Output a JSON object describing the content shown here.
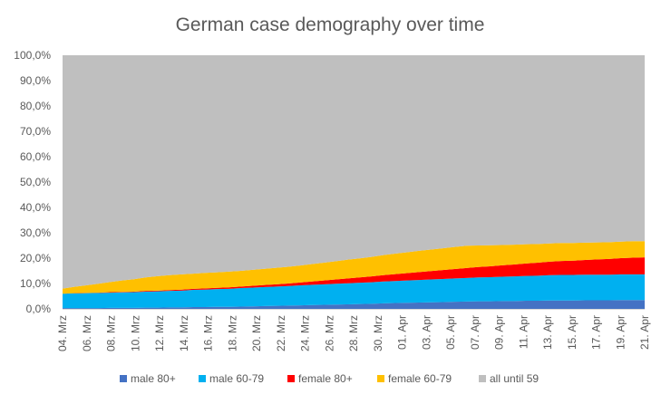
{
  "chart_data": {
    "type": "area",
    "stacked": true,
    "percent": true,
    "title": "German case demography over time",
    "xlabel": "",
    "ylabel": "",
    "ylim": [
      0,
      100
    ],
    "yticks": [
      "0,0%",
      "10,0%",
      "20,0%",
      "30,0%",
      "40,0%",
      "50,0%",
      "60,0%",
      "70,0%",
      "80,0%",
      "90,0%",
      "100,0%"
    ],
    "grid": false,
    "legend_position": "bottom",
    "categories": [
      "04. Mrz",
      "05. Mrz",
      "06. Mrz",
      "07. Mrz",
      "08. Mrz",
      "09. Mrz",
      "10. Mrz",
      "11. Mrz",
      "12. Mrz",
      "13. Mrz",
      "14. Mrz",
      "15. Mrz",
      "16. Mrz",
      "17. Mrz",
      "18. Mrz",
      "19. Mrz",
      "20. Mrz",
      "21. Mrz",
      "22. Mrz",
      "23. Mrz",
      "24. Mrz",
      "25. Mrz",
      "26. Mrz",
      "27. Mrz",
      "28. Mrz",
      "29. Mrz",
      "30. Mrz",
      "31. Mrz",
      "01. Apr",
      "02. Apr",
      "03. Apr",
      "04. Apr",
      "05. Apr",
      "06. Apr",
      "07. Apr",
      "08. Apr",
      "09. Apr",
      "10. Apr",
      "11. Apr",
      "12. Apr",
      "13. Apr",
      "14. Apr",
      "15. Apr",
      "16. Apr",
      "17. Apr",
      "18. Apr",
      "19. Apr",
      "20. Apr",
      "21. Apr",
      "22. Apr"
    ],
    "tick_labels": [
      "04. Mrz",
      "06. Mrz",
      "08. Mrz",
      "10. Mrz",
      "12. Mrz",
      "14. Mrz",
      "16. Mrz",
      "18. Mrz",
      "20. Mrz",
      "22. Mrz",
      "24. Mrz",
      "26. Mrz",
      "28. Mrz",
      "30. Mrz",
      "01. Apr",
      "03. Apr",
      "05. Apr",
      "07. Apr",
      "09. Apr",
      "11. Apr",
      "13. Apr",
      "15. Apr",
      "17. Apr",
      "19. Apr",
      "21. Apr"
    ],
    "series": [
      {
        "name": "male 80+",
        "color": "#4472c4",
        "values": [
          0.3,
          0.3,
          0.3,
          0.3,
          0.4,
          0.4,
          0.4,
          0.5,
          0.5,
          0.6,
          0.6,
          0.7,
          0.7,
          0.8,
          0.8,
          0.9,
          1.0,
          1.1,
          1.2,
          1.3,
          1.4,
          1.5,
          1.6,
          1.7,
          1.8,
          1.9,
          2.0,
          2.2,
          2.3,
          2.4,
          2.5,
          2.6,
          2.7,
          2.8,
          2.9,
          3.0,
          3.0,
          3.1,
          3.1,
          3.2,
          3.2,
          3.3,
          3.3,
          3.3,
          3.4,
          3.4,
          3.4,
          3.5,
          3.5,
          3.5
        ]
      },
      {
        "name": "male 60-79",
        "color": "#00b0f0",
        "values": [
          5.7,
          5.8,
          5.9,
          6.0,
          6.0,
          6.1,
          6.2,
          6.3,
          6.4,
          6.5,
          6.6,
          6.8,
          6.9,
          7.0,
          7.1,
          7.3,
          7.4,
          7.5,
          7.6,
          7.7,
          7.9,
          8.0,
          8.1,
          8.2,
          8.3,
          8.4,
          8.5,
          8.6,
          8.7,
          8.8,
          8.9,
          9.0,
          9.1,
          9.2,
          9.3,
          9.4,
          9.5,
          9.6,
          9.7,
          9.8,
          9.9,
          10.0,
          10.1,
          10.1,
          10.1,
          10.1,
          10.1,
          10.1,
          10.1,
          10.1
        ]
      },
      {
        "name": "female 80+",
        "color": "#ff0000",
        "values": [
          0.0,
          0.1,
          0.1,
          0.1,
          0.2,
          0.2,
          0.2,
          0.3,
          0.3,
          0.3,
          0.4,
          0.4,
          0.5,
          0.5,
          0.6,
          0.6,
          0.7,
          0.8,
          0.9,
          1.0,
          1.1,
          1.3,
          1.5,
          1.7,
          1.9,
          2.1,
          2.3,
          2.5,
          2.7,
          2.9,
          3.1,
          3.3,
          3.5,
          3.7,
          3.9,
          4.1,
          4.3,
          4.5,
          4.7,
          4.9,
          5.1,
          5.3,
          5.5,
          5.6,
          5.8,
          6.0,
          6.2,
          6.4,
          6.6,
          6.7
        ]
      },
      {
        "name": "female 60-79",
        "color": "#ffc000",
        "values": [
          2.0,
          2.5,
          3.0,
          3.5,
          4.0,
          4.5,
          4.9,
          5.3,
          5.7,
          5.9,
          6.0,
          6.0,
          6.1,
          6.1,
          6.2,
          6.2,
          6.3,
          6.4,
          6.5,
          6.6,
          6.7,
          6.9,
          7.0,
          7.2,
          7.4,
          7.5,
          7.7,
          7.9,
          8.1,
          8.2,
          8.4,
          8.5,
          8.6,
          8.7,
          8.8,
          8.5,
          8.3,
          8.0,
          7.8,
          7.6,
          7.4,
          7.2,
          7.1,
          7.0,
          6.8,
          6.7,
          6.6,
          6.5,
          6.5,
          6.4
        ]
      },
      {
        "name": "all until 59",
        "color": "#bfbfbf",
        "values": [
          92.0,
          91.3,
          90.7,
          90.1,
          89.4,
          88.8,
          88.3,
          87.6,
          87.1,
          86.7,
          86.4,
          86.1,
          85.8,
          85.6,
          85.3,
          85.0,
          84.6,
          84.2,
          83.8,
          83.4,
          82.9,
          82.3,
          81.8,
          81.2,
          80.6,
          80.1,
          79.5,
          78.8,
          78.2,
          77.7,
          77.1,
          76.6,
          76.1,
          75.6,
          75.1,
          75.0,
          74.9,
          74.8,
          74.7,
          74.5,
          74.4,
          74.2,
          74.0,
          74.0,
          73.9,
          73.8,
          73.7,
          73.5,
          73.3,
          73.3
        ]
      }
    ]
  }
}
